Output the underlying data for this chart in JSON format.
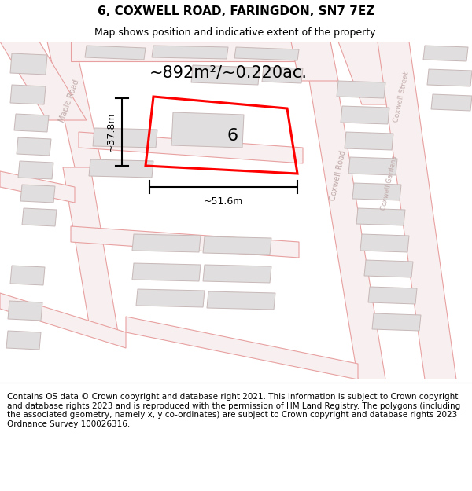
{
  "title": "6, COXWELL ROAD, FARINGDON, SN7 7EZ",
  "subtitle": "Map shows position and indicative extent of the property.",
  "area_label": "~892m²/~0.220ac.",
  "property_number": "6",
  "width_label": "~51.6m",
  "height_label": "~37.8m",
  "footer_text": "Contains OS data © Crown copyright and database right 2021. This information is subject to Crown copyright and database rights 2023 and is reproduced with the permission of HM Land Registry. The polygons (including the associated geometry, namely x, y co-ordinates) are subject to Crown copyright and database rights 2023 Ordnance Survey 100026316.",
  "map_bg": "#ffffff",
  "road_outline_color": "#e8a0a0",
  "road_fill_color": "#f8f0f0",
  "building_fill": "#e0dede",
  "building_edge": "#c8b8b8",
  "highlight_color": "#ff0000",
  "title_fontsize": 11,
  "subtitle_fontsize": 9,
  "area_fontsize": 15,
  "number_fontsize": 16,
  "label_fontsize": 9,
  "road_label_fontsize": 7,
  "footer_fontsize": 7.5
}
